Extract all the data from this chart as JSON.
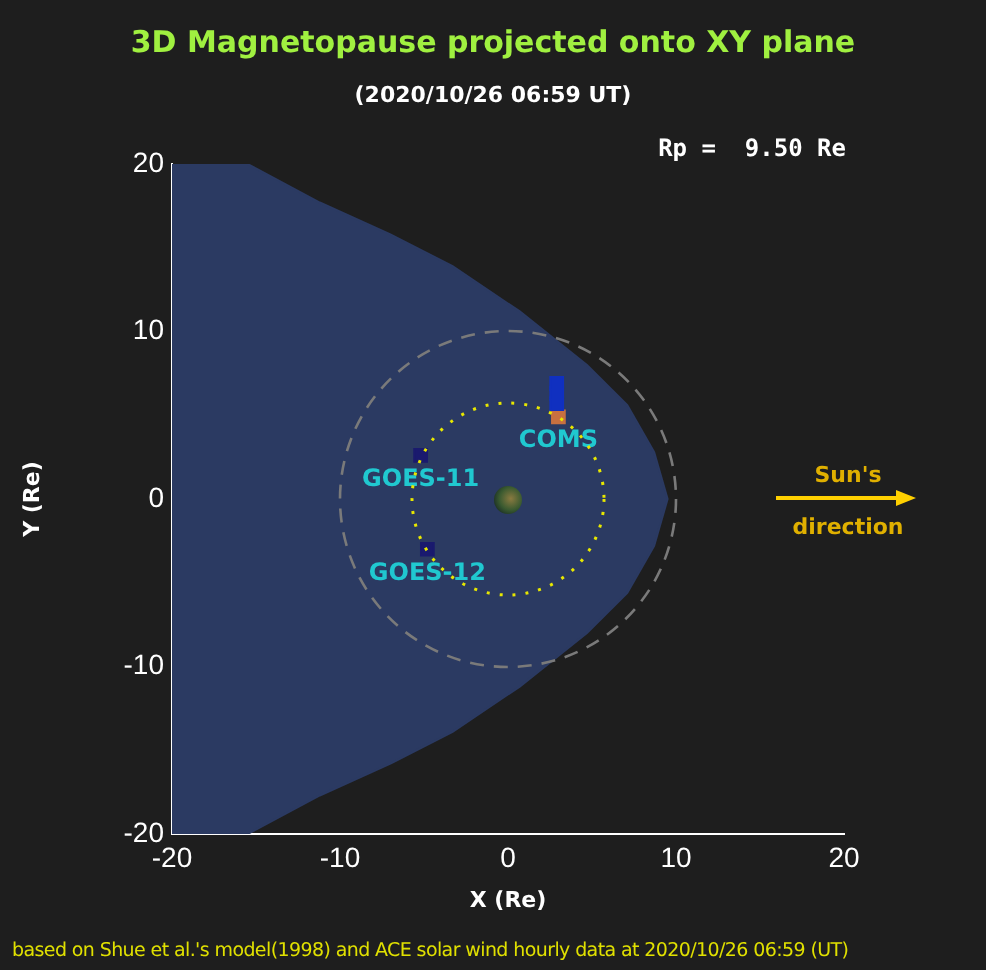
{
  "chart_data": {
    "type": "scatter",
    "title": "3D Magnetopause projected onto XY plane",
    "subtitle": "(2020/10/26 06:59 UT)",
    "xlabel": "X (Re)",
    "ylabel": "Y (Re)",
    "xlim": [
      -20,
      20
    ],
    "ylim": [
      -20,
      20
    ],
    "xticks": [
      -20,
      -10,
      0,
      10,
      20
    ],
    "yticks": [
      -20,
      -10,
      0,
      10,
      20
    ],
    "grid": false,
    "legend": false,
    "annotations": [
      "Rp =  9.50 Re",
      "Sun's direction",
      "based on Shue et al.'s model(1998) and ACE solar wind hourly data at 2020/10/26 06:59 (UT)"
    ],
    "series": [
      {
        "type": "area",
        "color": "#2b3a62",
        "x": [
          -20,
          -15.5,
          -11.2,
          -7,
          -3.3,
          0.7,
          4.7,
          7.1,
          8.7,
          9.5,
          8.7,
          7.1,
          4.7,
          0.7,
          -3.3,
          -7,
          -11.2,
          -15.5,
          -20
        ],
        "values": [
          20,
          20,
          17.7,
          15.8,
          13.9,
          11.2,
          8,
          5.6,
          2.8,
          0,
          -2.8,
          -5.6,
          -8,
          -11.2,
          -13.9,
          -15.8,
          -17.7,
          -20,
          -20
        ]
      },
      {
        "type": "scatter",
        "color": "#1030c0",
        "marker": "square",
        "x": [
          2.9,
          2.9,
          2.9
        ],
        "values": [
          5.7,
          6.3,
          6.9
        ]
      },
      {
        "type": "scatter",
        "name": "GOES-11",
        "color": "#1a1a6e",
        "marker": "square",
        "x": [
          -5.2
        ],
        "values": [
          2.6
        ]
      },
      {
        "type": "scatter",
        "name": "GOES-12",
        "color": "#1a1a6e",
        "marker": "square",
        "x": [
          -4.8
        ],
        "values": [
          -3.0
        ]
      },
      {
        "type": "scatter",
        "name": "COMS",
        "color": "#c87040",
        "marker": "square",
        "x": [
          3.0
        ],
        "values": [
          4.9
        ]
      }
    ]
  }
}
